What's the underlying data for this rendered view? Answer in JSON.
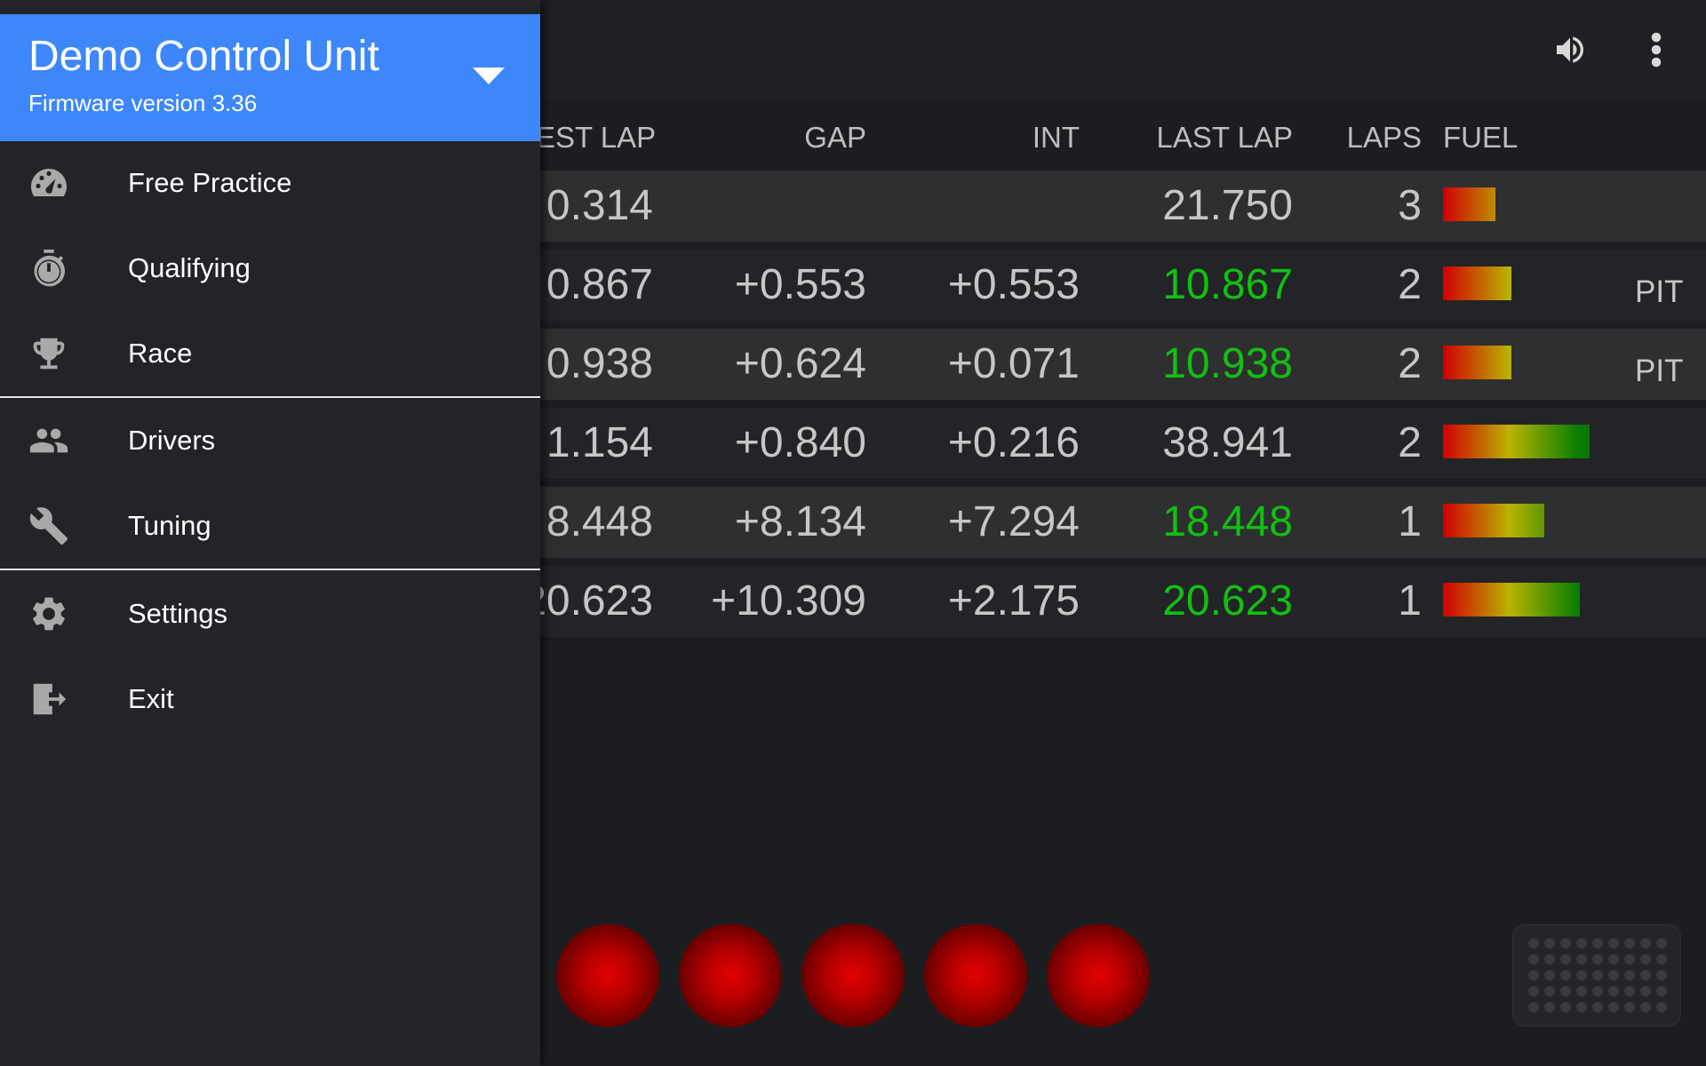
{
  "drawer": {
    "unit_name": "Demo Control Unit",
    "firmware": "Firmware version 3.36",
    "items": [
      {
        "label": "Free Practice",
        "icon": "speedometer-icon"
      },
      {
        "label": "Qualifying",
        "icon": "stopwatch-icon"
      },
      {
        "label": "Race",
        "icon": "trophy-icon"
      },
      {
        "label": "Drivers",
        "icon": "people-icon"
      },
      {
        "label": "Tuning",
        "icon": "wrench-icon"
      },
      {
        "label": "Settings",
        "icon": "gear-icon"
      },
      {
        "label": "Exit",
        "icon": "exit-icon"
      }
    ]
  },
  "appbar": {
    "icons": [
      "volume-icon",
      "more-vert-icon"
    ]
  },
  "table": {
    "headers": {
      "best_lap": "EST LAP",
      "gap": "GAP",
      "int": "INT",
      "last_lap": "LAST LAP",
      "laps": "LAPS",
      "fuel": "FUEL"
    },
    "rows": [
      {
        "best": "0.314",
        "gap": "",
        "int": "",
        "last": "21.750",
        "last_green": false,
        "laps": "3",
        "fuel": 0.27,
        "pit": ""
      },
      {
        "best": "0.867",
        "gap": "+0.553",
        "int": "+0.553",
        "last": "10.867",
        "last_green": true,
        "laps": "2",
        "fuel": 0.35,
        "pit": "PIT"
      },
      {
        "best": "0.938",
        "gap": "+0.624",
        "int": "+0.071",
        "last": "10.938",
        "last_green": true,
        "laps": "2",
        "fuel": 0.35,
        "pit": "PIT"
      },
      {
        "best": "1.154",
        "gap": "+0.840",
        "int": "+0.216",
        "last": "38.941",
        "last_green": false,
        "laps": "2",
        "fuel": 0.75,
        "pit": ""
      },
      {
        "best": "8.448",
        "gap": "+8.134",
        "int": "+7.294",
        "last": "18.448",
        "last_green": true,
        "laps": "1",
        "fuel": 0.52,
        "pit": ""
      },
      {
        "best": "20.623",
        "gap": "+10.309",
        "int": "+2.175",
        "last": "20.623",
        "last_green": true,
        "laps": "1",
        "fuel": 0.7,
        "pit": ""
      }
    ]
  },
  "start_lights": {
    "count": 5,
    "color": "#c40000"
  },
  "colors": {
    "accent": "#3d87fb",
    "lap_green": "#11c011",
    "background": "#1c1d20",
    "drawer": "#232428"
  }
}
